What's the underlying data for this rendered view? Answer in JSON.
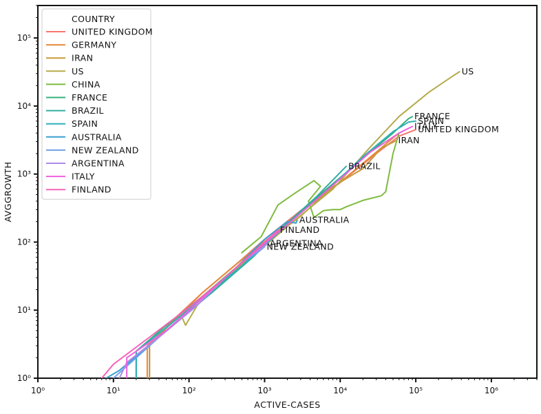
{
  "chart_data": {
    "type": "line",
    "title": "",
    "xlabel": "ACTIVE-CASES",
    "ylabel": "AVGGROWTH",
    "xscale": "log",
    "yscale": "log",
    "xlim": [
      1,
      4000000
    ],
    "ylim": [
      1,
      300000
    ],
    "x_ticks": [
      {
        "value": 1,
        "label": "10⁰"
      },
      {
        "value": 10,
        "label": "10¹"
      },
      {
        "value": 100,
        "label": "10²"
      },
      {
        "value": 1000,
        "label": "10³"
      },
      {
        "value": 10000,
        "label": "10⁴"
      },
      {
        "value": 100000,
        "label": "10⁵"
      },
      {
        "value": 1000000,
        "label": "10⁶"
      }
    ],
    "y_ticks": [
      {
        "value": 1,
        "label": "10⁰"
      },
      {
        "value": 10,
        "label": "10¹"
      },
      {
        "value": 100,
        "label": "10²"
      },
      {
        "value": 1000,
        "label": "10³"
      },
      {
        "value": 10000,
        "label": "10⁴"
      },
      {
        "value": 100000,
        "label": "10⁵"
      }
    ],
    "grid": false,
    "legend": {
      "title": "COUNTRY",
      "position": "top-left"
    },
    "series": [
      {
        "name": "UNITED KINGDOM",
        "color": "#f7756d",
        "label": "UNITED KINGDOM",
        "points": [
          [
            30,
            1
          ],
          [
            30,
            3
          ],
          [
            60,
            7
          ],
          [
            150,
            18
          ],
          [
            400,
            45
          ],
          [
            1000,
            110
          ],
          [
            3000,
            290
          ],
          [
            10000,
            750
          ],
          [
            30000,
            2000
          ],
          [
            60000,
            3600
          ],
          [
            100000,
            4500
          ]
        ]
      },
      {
        "name": "GERMANY",
        "color": "#e58a3a",
        "label": "",
        "points": [
          [
            28,
            1
          ],
          [
            28,
            3
          ],
          [
            55,
            6
          ],
          [
            150,
            18
          ],
          [
            400,
            45
          ],
          [
            1200,
            120
          ],
          [
            4000,
            350
          ],
          [
            12000,
            900
          ],
          [
            30000,
            2100
          ],
          [
            50000,
            3400
          ],
          [
            60000,
            4000
          ]
        ]
      },
      {
        "name": "IRAN",
        "color": "#c89a3a",
        "label": "IRAN",
        "points": [
          [
            30,
            1
          ],
          [
            30,
            3
          ],
          [
            70,
            8
          ],
          [
            300,
            28
          ],
          [
            1000,
            95
          ],
          [
            3000,
            240
          ],
          [
            8000,
            650
          ],
          [
            14000,
            950
          ],
          [
            20000,
            1200
          ],
          [
            35000,
            2400
          ],
          [
            55000,
            3100
          ]
        ]
      },
      {
        "name": "US",
        "color": "#b5aa4a",
        "label": "US",
        "points": [
          [
            80,
            8
          ],
          [
            90,
            6
          ],
          [
            130,
            12
          ],
          [
            500,
            45
          ],
          [
            2000,
            170
          ],
          [
            8000,
            600
          ],
          [
            25000,
            2500
          ],
          [
            60000,
            7000
          ],
          [
            150000,
            16000
          ],
          [
            300000,
            27000
          ],
          [
            380000,
            32000
          ]
        ]
      },
      {
        "name": "CHINA",
        "color": "#7dba3e",
        "label": "",
        "points": [
          [
            500,
            70
          ],
          [
            900,
            120
          ],
          [
            1500,
            350
          ],
          [
            2500,
            520
          ],
          [
            4500,
            800
          ],
          [
            5500,
            660
          ],
          [
            3800,
            400
          ],
          [
            4500,
            230
          ],
          [
            6000,
            290
          ],
          [
            8000,
            300
          ],
          [
            10000,
            300
          ],
          [
            12000,
            330
          ],
          [
            20000,
            410
          ],
          [
            35000,
            480
          ],
          [
            40000,
            550
          ],
          [
            50000,
            2000
          ],
          [
            60000,
            4000
          ]
        ]
      },
      {
        "name": "FRANCE",
        "color": "#35b07a",
        "label": "FRANCE",
        "points": [
          [
            20,
            1
          ],
          [
            20,
            2.5
          ],
          [
            50,
            6
          ],
          [
            150,
            16
          ],
          [
            500,
            50
          ],
          [
            2000,
            180
          ],
          [
            6000,
            550
          ],
          [
            20000,
            1700
          ],
          [
            50000,
            4000
          ],
          [
            80000,
            6500
          ],
          [
            90000,
            7000
          ]
        ]
      },
      {
        "name": "BRAZIL",
        "color": "#30ada0",
        "label": "BRAZIL",
        "points": [
          [
            20,
            1
          ],
          [
            20,
            2
          ],
          [
            60,
            6
          ],
          [
            200,
            18
          ],
          [
            700,
            60
          ],
          [
            2000,
            190
          ],
          [
            5000,
            480
          ],
          [
            12000,
            1300
          ]
        ]
      },
      {
        "name": "SPAIN",
        "color": "#2fb1b8",
        "label": "SPAIN",
        "points": [
          [
            20,
            1
          ],
          [
            20,
            2.5
          ],
          [
            55,
            6
          ],
          [
            150,
            15
          ],
          [
            500,
            45
          ],
          [
            2000,
            180
          ],
          [
            7000,
            600
          ],
          [
            20000,
            1800
          ],
          [
            50000,
            4200
          ],
          [
            80000,
            5800
          ],
          [
            100000,
            6000
          ]
        ]
      },
      {
        "name": "AUSTRALIA",
        "color": "#3aa0d0",
        "label": "AUSTRALIA",
        "points": [
          [
            8,
            1
          ],
          [
            12,
            1.3
          ],
          [
            40,
            4
          ],
          [
            130,
            12
          ],
          [
            400,
            40
          ],
          [
            1000,
            110
          ],
          [
            2000,
            200
          ],
          [
            2600,
            190
          ],
          [
            2700,
            210
          ]
        ]
      },
      {
        "name": "NEW ZEALAND",
        "color": "#6fa0e8",
        "label": "NEW ZEALAND",
        "points": [
          [
            10,
            1
          ],
          [
            15,
            1.5
          ],
          [
            40,
            4
          ],
          [
            120,
            11
          ],
          [
            300,
            30
          ],
          [
            500,
            50
          ],
          [
            800,
            70
          ],
          [
            1000,
            85
          ]
        ]
      },
      {
        "name": "ARGENTINA",
        "color": "#b08ae6",
        "label": "ARGENTINA",
        "points": [
          [
            12,
            1
          ],
          [
            15,
            1.7
          ],
          [
            40,
            4
          ],
          [
            120,
            11
          ],
          [
            300,
            30
          ],
          [
            600,
            60
          ],
          [
            900,
            80
          ],
          [
            1100,
            95
          ]
        ]
      },
      {
        "name": "ITALY",
        "color": "#ee5fe0",
        "label": "ITALY",
        "points": [
          [
            15,
            1
          ],
          [
            15,
            2
          ],
          [
            50,
            5
          ],
          [
            150,
            15
          ],
          [
            500,
            50
          ],
          [
            2000,
            180
          ],
          [
            7000,
            600
          ],
          [
            25000,
            2100
          ],
          [
            60000,
            4000
          ],
          [
            90000,
            5000
          ]
        ]
      },
      {
        "name": "FINLAND",
        "color": "#f563b8",
        "label": "FINLAND",
        "points": [
          [
            7,
            1
          ],
          [
            10,
            1.6
          ],
          [
            30,
            4
          ],
          [
            100,
            11
          ],
          [
            300,
            30
          ],
          [
            800,
            80
          ],
          [
            1500,
            150
          ]
        ]
      }
    ]
  }
}
